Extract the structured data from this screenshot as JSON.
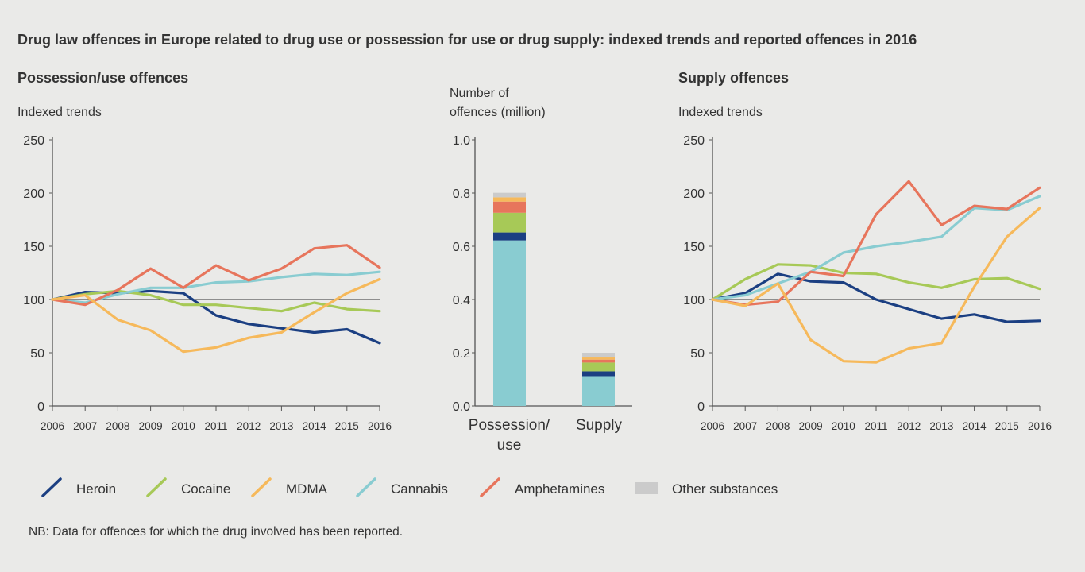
{
  "title": "Drug law offences in Europe related to drug use or possession for use or drug supply: indexed trends and reported offences in 2016",
  "note": "NB: Data for offences for which the drug involved has been reported.",
  "colors": {
    "Heroin": "#1b3f82",
    "Cocaine": "#a7c957",
    "MDMA": "#f6b95b",
    "Cannabis": "#89ccd1",
    "Amphetamines": "#e7755c",
    "Other substances": "#cbcbcb"
  },
  "legend": [
    "Heroin",
    "Cocaine",
    "MDMA",
    "Cannabis",
    "Amphetamines",
    "Other substances"
  ],
  "chart_data": [
    {
      "type": "line",
      "title": "Possession/use offences",
      "ylabel": "Indexed trends",
      "ylim": [
        0,
        250
      ],
      "yticks": [
        0,
        50,
        100,
        150,
        200,
        250
      ],
      "reference_line": 100,
      "x": [
        2006,
        2007,
        2008,
        2009,
        2010,
        2011,
        2012,
        2013,
        2014,
        2015,
        2016
      ],
      "series": [
        {
          "name": "Heroin",
          "values": [
            100,
            107,
            106,
            108,
            106,
            85,
            77,
            73,
            69,
            72,
            59
          ]
        },
        {
          "name": "Cocaine",
          "values": [
            100,
            105,
            108,
            104,
            95,
            95,
            92,
            89,
            97,
            91,
            89
          ]
        },
        {
          "name": "Cannabis",
          "values": [
            100,
            97,
            105,
            111,
            111,
            116,
            117,
            121,
            124,
            123,
            126
          ]
        },
        {
          "name": "Amphetamines",
          "values": [
            100,
            95,
            109,
            129,
            111,
            132,
            118,
            129,
            148,
            151,
            130
          ]
        },
        {
          "name": "MDMA",
          "values": [
            100,
            104,
            81,
            71,
            51,
            55,
            64,
            69,
            88,
            106,
            119
          ]
        }
      ]
    },
    {
      "type": "bar",
      "stacked": true,
      "ylabel": "Number of offences (million)",
      "ylim": [
        0,
        1.0
      ],
      "yticks": [
        "0.0",
        "0.2",
        "0.4",
        "0.6",
        "0.8",
        "1.0"
      ],
      "categories": [
        "Possession/ use",
        "Supply"
      ],
      "series": [
        {
          "name": "Cannabis",
          "values": [
            0.622,
            0.112
          ]
        },
        {
          "name": "Heroin",
          "values": [
            0.03,
            0.018
          ]
        },
        {
          "name": "Cocaine",
          "values": [
            0.074,
            0.033
          ]
        },
        {
          "name": "Amphetamines",
          "values": [
            0.042,
            0.011
          ]
        },
        {
          "name": "MDMA",
          "values": [
            0.016,
            0.008
          ]
        },
        {
          "name": "Other substances",
          "values": [
            0.017,
            0.018
          ]
        }
      ]
    },
    {
      "type": "line",
      "title": "Supply offences",
      "ylabel": "Indexed trends",
      "ylim": [
        0,
        250
      ],
      "yticks": [
        0,
        50,
        100,
        150,
        200,
        250
      ],
      "reference_line": 100,
      "x": [
        2006,
        2007,
        2008,
        2009,
        2010,
        2011,
        2012,
        2013,
        2014,
        2015,
        2016
      ],
      "series": [
        {
          "name": "Heroin",
          "values": [
            100,
            106,
            124,
            117,
            116,
            100,
            91,
            82,
            86,
            79,
            80
          ]
        },
        {
          "name": "Cocaine",
          "values": [
            100,
            119,
            133,
            132,
            125,
            124,
            116,
            111,
            119,
            120,
            110
          ]
        },
        {
          "name": "Cannabis",
          "values": [
            100,
            104,
            115,
            126,
            144,
            150,
            154,
            159,
            186,
            184,
            197
          ]
        },
        {
          "name": "Amphetamines",
          "values": [
            100,
            95,
            98,
            126,
            122,
            180,
            211,
            170,
            188,
            185,
            205
          ]
        },
        {
          "name": "MDMA",
          "values": [
            100,
            94,
            115,
            62,
            42,
            41,
            54,
            59,
            112,
            159,
            186
          ]
        }
      ]
    }
  ]
}
